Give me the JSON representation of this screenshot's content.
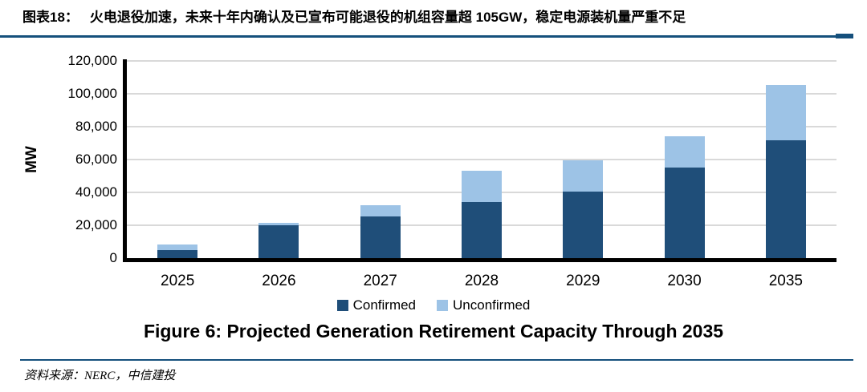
{
  "header": {
    "label": "图表18：",
    "title": "火电退役加速，未来十年内确认及已宣布可能退役的机组容量超 105GW，稳定电源装机量严重不足"
  },
  "figure_caption": "Figure 6: Projected Generation Retirement Capacity Through 2035",
  "source": "资料来源：NERC，中信建投",
  "colors": {
    "confirmed": "#1F4E79",
    "unconfirmed": "#9DC3E6",
    "rule_navy": "#15507C",
    "gridline": "#D9D9D9",
    "axis": "#000000"
  },
  "chart_data": {
    "type": "bar",
    "stacked": true,
    "categories": [
      "2025",
      "2026",
      "2027",
      "2028",
      "2029",
      "2030",
      "2035"
    ],
    "series": [
      {
        "name": "Confirmed",
        "color": "#1F4E79",
        "values": [
          5000,
          20000,
          25500,
          34000,
          40500,
          55000,
          71500
        ]
      },
      {
        "name": "Unconfirmed",
        "color": "#9DC3E6",
        "values": [
          3500,
          1500,
          6500,
          19000,
          19000,
          19000,
          34000
        ]
      }
    ],
    "totals": [
      8500,
      21500,
      32000,
      53000,
      59500,
      74000,
      105500
    ],
    "title": "",
    "xlabel": "",
    "ylabel": "MW",
    "ylim": [
      0,
      120000
    ],
    "ytick_step": 20000,
    "yticks": [
      "0",
      "20,000",
      "40,000",
      "60,000",
      "80,000",
      "100,000",
      "120,000"
    ],
    "grid": true,
    "legend_position": "bottom"
  }
}
